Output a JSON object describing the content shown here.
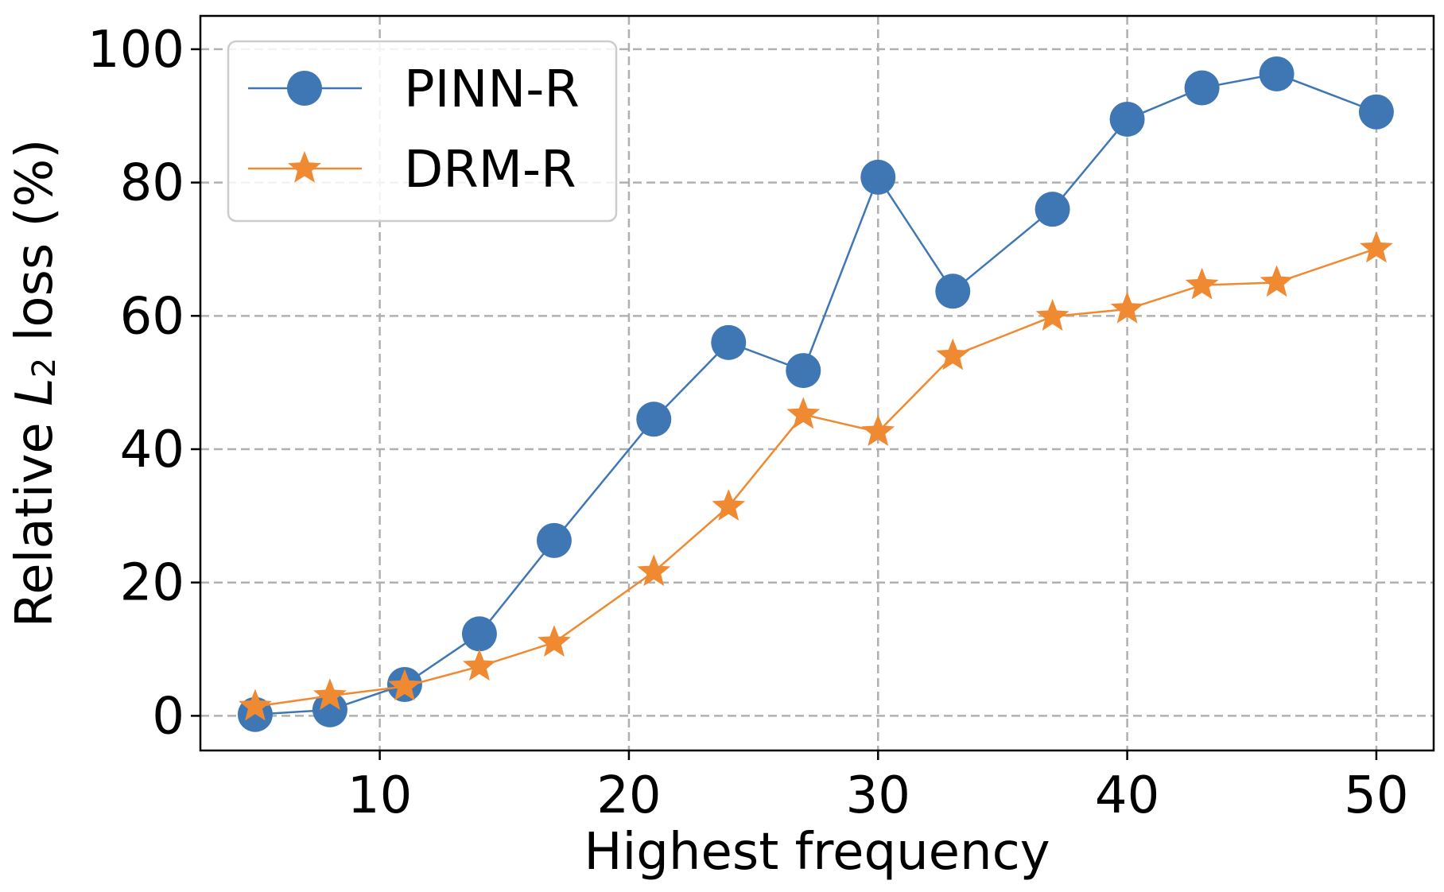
{
  "chart_data": {
    "type": "line",
    "title": "",
    "xlabel": "Highest frequency",
    "ylabel": {
      "prefix": "Relative ",
      "var": "L",
      "sub": "2",
      "suffix": " loss (%)"
    },
    "xlim": [
      2.8,
      52.3
    ],
    "ylim": [
      -5.2,
      105
    ],
    "xticks": [
      10,
      20,
      30,
      40,
      50
    ],
    "yticks": [
      0,
      20,
      40,
      60,
      80,
      100
    ],
    "grid": true,
    "legend_position": "top-left",
    "x": [
      5,
      8,
      11,
      14,
      17,
      21,
      24,
      27,
      30,
      33,
      37,
      40,
      43,
      46,
      50
    ],
    "series": [
      {
        "name": "PINN-R",
        "marker": "circle",
        "color": "#3f77b4",
        "values": [
          0.2,
          0.9,
          4.7,
          12.3,
          26.3,
          44.5,
          56.0,
          51.8,
          80.8,
          63.7,
          76.0,
          89.5,
          94.2,
          96.3,
          90.6
        ]
      },
      {
        "name": "DRM-R",
        "marker": "star",
        "color": "#f08a32",
        "values": [
          1.4,
          3.0,
          4.4,
          7.4,
          11.0,
          21.6,
          31.4,
          45.2,
          42.6,
          54.0,
          59.9,
          61.0,
          64.6,
          65.0,
          70.1
        ]
      }
    ]
  }
}
